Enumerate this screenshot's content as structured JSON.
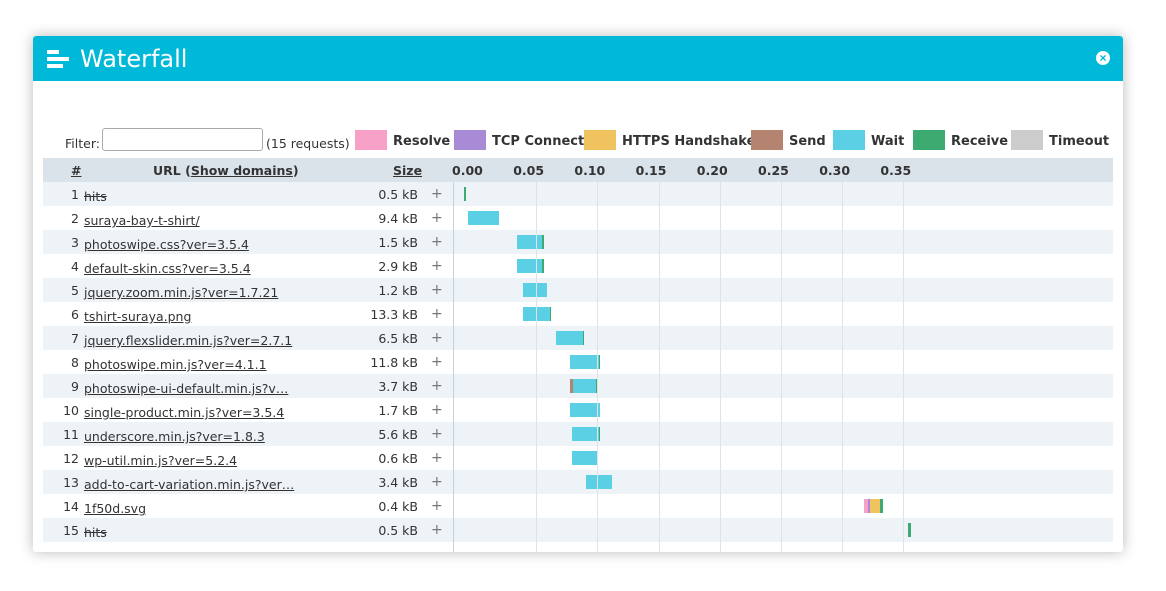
{
  "window": {
    "title": "Waterfall",
    "icon": "waterfall-icon",
    "close_icon": "close-icon",
    "close_glyph": "×",
    "accent": "#00b8d8"
  },
  "filter": {
    "label": "Filter:",
    "value": "",
    "placeholder": "",
    "count_text": "(15 requests)"
  },
  "legend": [
    {
      "label": "Resolve",
      "color": "#f7a1c8"
    },
    {
      "label": "TCP Connect",
      "color": "#a98ad6"
    },
    {
      "label": "HTTPS Handshake",
      "color": "#f0c35e"
    },
    {
      "label": "Send",
      "color": "#b48470"
    },
    {
      "label": "Wait",
      "color": "#5bd0e5"
    },
    {
      "label": "Receive",
      "color": "#3daa72"
    },
    {
      "label": "Timeout",
      "color": "#cccccc"
    }
  ],
  "columns": {
    "number": "#",
    "url_prefix": "URL (",
    "url_link": "Show domains",
    "url_suffix": ")",
    "size": "Size"
  },
  "axis": {
    "ticks": [
      "0.00",
      "0.05",
      "0.10",
      "0.15",
      "0.20",
      "0.25",
      "0.30",
      "0.35"
    ],
    "max": 0.5
  },
  "rows": [
    {
      "num": "1",
      "url": "hits",
      "strike": true,
      "size": "0.5 kB",
      "timing": [
        [
          "receive",
          0.0,
          0.001
        ]
      ]
    },
    {
      "num": "2",
      "url": "suraya-bay-t-shirt/",
      "strike": false,
      "size": "9.4 kB",
      "timing": [
        [
          "wait",
          0.003,
          0.029
        ]
      ]
    },
    {
      "num": "3",
      "url": "photoswipe.css?ver=3.5.4",
      "strike": false,
      "size": "1.5 kB",
      "timing": [
        [
          "wait",
          0.043,
          0.064
        ],
        [
          "receive",
          0.064,
          0.065
        ]
      ]
    },
    {
      "num": "4",
      "url": "default-skin.css?ver=3.5.4",
      "strike": false,
      "size": "2.9 kB",
      "timing": [
        [
          "wait",
          0.043,
          0.064
        ],
        [
          "receive",
          0.064,
          0.065
        ]
      ]
    },
    {
      "num": "5",
      "url": "jquery.zoom.min.js?ver=1.7.21",
      "strike": false,
      "size": "1.2 kB",
      "timing": [
        [
          "wait",
          0.048,
          0.068
        ]
      ]
    },
    {
      "num": "6",
      "url": "tshirt-suraya.png",
      "strike": false,
      "size": "13.3 kB",
      "timing": [
        [
          "wait",
          0.048,
          0.07
        ],
        [
          "receive",
          0.07,
          0.071
        ]
      ]
    },
    {
      "num": "7",
      "url": "jquery.flexslider.min.js?ver=2.7.1",
      "strike": false,
      "size": "6.5 kB",
      "timing": [
        [
          "wait",
          0.075,
          0.097
        ],
        [
          "receive",
          0.097,
          0.098
        ]
      ]
    },
    {
      "num": "8",
      "url": "photoswipe.min.js?ver=4.1.1",
      "strike": false,
      "size": "11.8 kB",
      "timing": [
        [
          "wait",
          0.087,
          0.11
        ],
        [
          "receive",
          0.11,
          0.111
        ]
      ]
    },
    {
      "num": "9",
      "url": "photoswipe-ui-default.min.js?v…",
      "strike": false,
      "size": "3.7 kB",
      "timing": [
        [
          "send",
          0.087,
          0.089
        ],
        [
          "wait",
          0.089,
          0.108
        ],
        [
          "receive",
          0.108,
          0.109
        ]
      ]
    },
    {
      "num": "10",
      "url": "single-product.min.js?ver=3.5.4",
      "strike": false,
      "size": "1.7 kB",
      "timing": [
        [
          "wait",
          0.087,
          0.111
        ]
      ]
    },
    {
      "num": "11",
      "url": "underscore.min.js?ver=1.8.3",
      "strike": false,
      "size": "5.6 kB",
      "timing": [
        [
          "wait",
          0.088,
          0.11
        ],
        [
          "receive",
          0.11,
          0.111
        ]
      ]
    },
    {
      "num": "12",
      "url": "wp-util.min.js?ver=5.2.4",
      "strike": false,
      "size": "0.6 kB",
      "timing": [
        [
          "wait",
          0.088,
          0.109
        ]
      ]
    },
    {
      "num": "13",
      "url": "add-to-cart-variation.min.js?ver…",
      "strike": false,
      "size": "3.4 kB",
      "timing": [
        [
          "wait",
          0.1,
          0.121
        ]
      ]
    },
    {
      "num": "14",
      "url": "1f50d.svg",
      "strike": false,
      "size": "0.4 kB",
      "timing": [
        [
          "resolve",
          0.327,
          0.33
        ],
        [
          "tcp",
          0.33,
          0.332
        ],
        [
          "https",
          0.332,
          0.34
        ],
        [
          "receive",
          0.34,
          0.342
        ]
      ]
    },
    {
      "num": "15",
      "url": "hits",
      "strike": true,
      "size": "0.5 kB",
      "timing": [
        [
          "receive",
          0.363,
          0.365
        ]
      ]
    }
  ],
  "plus_glyph": "+"
}
